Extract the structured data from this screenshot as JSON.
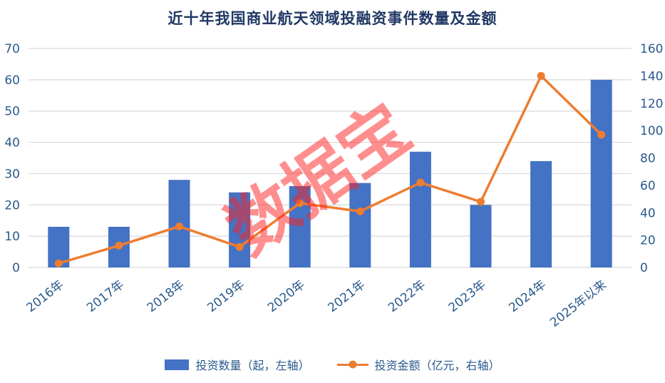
{
  "title": "近十年我国商业航天领域投融资事件数量及金额",
  "watermark": "数据宝",
  "legend": {
    "bar_label": "投资数量（起，左轴）",
    "line_label": "投资金额（亿元，右轴）"
  },
  "colors": {
    "bar": "#4472C4",
    "line": "#ED7D31",
    "title": "#203864",
    "axis_text": "#2A5A8C",
    "gridline": "#D9D9D9",
    "watermark": "#FF2222"
  },
  "chart_data": {
    "type": "bar+line combo",
    "title": "近十年我国商业航天领域投融资事件数量及金额",
    "categories": [
      "2016年",
      "2017年",
      "2018年",
      "2019年",
      "2020年",
      "2021年",
      "2022年",
      "2023年",
      "2024年",
      "2025年以来"
    ],
    "series": [
      {
        "name": "投资数量（起，左轴）",
        "type": "bar",
        "axis": "left",
        "values": [
          13,
          13,
          28,
          24,
          26,
          27,
          37,
          20,
          34,
          60
        ]
      },
      {
        "name": "投资金额（亿元，右轴）",
        "type": "line",
        "axis": "right",
        "values": [
          3,
          16,
          30,
          15,
          47,
          41,
          62,
          48,
          140,
          97
        ]
      }
    ],
    "left_axis": {
      "min": 0,
      "max": 70,
      "ticks": [
        0,
        10,
        20,
        30,
        40,
        50,
        60,
        70
      ]
    },
    "right_axis": {
      "min": 0,
      "max": 160,
      "ticks": [
        0,
        20,
        40,
        60,
        80,
        100,
        120,
        140,
        160
      ]
    },
    "grid": true,
    "legend_position": "bottom",
    "x_tick_rotation": -38
  }
}
